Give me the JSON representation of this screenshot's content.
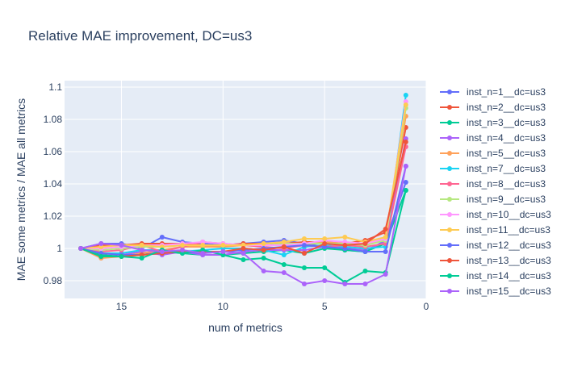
{
  "chart_data": {
    "type": "line",
    "title": "Relative MAE improvement, DC=us3",
    "xlabel": "num of metrics",
    "ylabel": "MAE some metrics / MAE all metrics",
    "xlim": [
      17.8,
      0
    ],
    "ylim": [
      0.969,
      1.104
    ],
    "xticks": [
      15,
      10,
      5,
      0
    ],
    "yticks": [
      0.98,
      1,
      1.02,
      1.04,
      1.06,
      1.08,
      1.1
    ],
    "ytick_labels": [
      "0.98",
      "1",
      "1.02",
      "1.04",
      "1.06",
      "1.08",
      "1.1"
    ],
    "grid": true,
    "legend_position": "right",
    "x": [
      17,
      16,
      15,
      14,
      13,
      12,
      11,
      10,
      9,
      8,
      7,
      6,
      5,
      4,
      3,
      2,
      1
    ],
    "series": [
      {
        "name": "inst_n=1__dc=us3",
        "color": "#636efa",
        "values": [
          1.0,
          1.003,
          1.003,
          1.0,
          1.007,
          1.004,
          1.003,
          1.002,
          1.003,
          1.004,
          1.005,
          1.003,
          1.001,
          0.999,
          0.998,
          1.005,
          1.041
        ]
      },
      {
        "name": "inst_n=2__dc=us3",
        "color": "#ef553b",
        "values": [
          1.0,
          1.002,
          1.002,
          1.003,
          1.003,
          1.003,
          1.002,
          1.002,
          1.003,
          1.003,
          1.003,
          1.004,
          1.004,
          1.003,
          1.005,
          1.01,
          1.075
        ]
      },
      {
        "name": "inst_n=3__dc=us3",
        "color": "#00cc96",
        "values": [
          1.0,
          0.996,
          0.995,
          0.996,
          0.998,
          0.997,
          0.996,
          0.996,
          0.997,
          0.998,
          0.999,
          0.997,
          1.0,
          0.999,
          0.998,
          1.003,
          1.036
        ]
      },
      {
        "name": "inst_n=4__dc=us3",
        "color": "#ab63fa",
        "values": [
          1.0,
          0.997,
          0.996,
          0.998,
          0.996,
          0.998,
          0.996,
          0.996,
          0.998,
          0.999,
          0.999,
          0.999,
          1.001,
          1.0,
          0.999,
          1.004,
          1.068
        ]
      },
      {
        "name": "inst_n=5__dc=us3",
        "color": "#ffa15a",
        "values": [
          1.0,
          0.994,
          0.995,
          0.997,
          0.999,
          1.001,
          1.001,
          1.001,
          1.002,
          1.002,
          1.002,
          1.003,
          1.004,
          1.003,
          1.002,
          1.006,
          1.082
        ]
      },
      {
        "name": "inst_n=7__dc=us3",
        "color": "#19d3f3",
        "values": [
          1.0,
          0.997,
          0.997,
          0.999,
          0.999,
          0.998,
          0.999,
          1.0,
          1.0,
          0.999,
          0.996,
          1.001,
          1.002,
          1.001,
          1.0,
          1.001,
          1.095
        ]
      },
      {
        "name": "inst_n=8__dc=us3",
        "color": "#ff6692",
        "values": [
          1.0,
          0.998,
          0.999,
          1.002,
          0.998,
          1.001,
          1.004,
          1.003,
          1.002,
          1.001,
          1.0,
          1.002,
          1.001,
          1.002,
          1.001,
          1.003,
          1.063
        ]
      },
      {
        "name": "inst_n=9__dc=us3",
        "color": "#b6e880",
        "values": [
          1.0,
          0.999,
          1.0,
          1.001,
          1.001,
          1.002,
          1.002,
          1.002,
          1.002,
          1.002,
          1.003,
          1.003,
          1.003,
          1.003,
          1.002,
          1.005,
          1.087
        ]
      },
      {
        "name": "inst_n=10__dc=us3",
        "color": "#ff97ff",
        "values": [
          1.0,
          1.0,
          1.001,
          1.002,
          1.002,
          1.003,
          1.004,
          1.003,
          1.002,
          1.002,
          1.002,
          1.003,
          1.005,
          1.004,
          1.003,
          1.006,
          1.091
        ]
      },
      {
        "name": "inst_n=11__dc=us3",
        "color": "#fecb52",
        "values": [
          1.0,
          1.001,
          1.002,
          1.002,
          1.001,
          1.002,
          1.002,
          1.002,
          1.002,
          1.003,
          1.004,
          1.006,
          1.006,
          1.007,
          1.004,
          1.007,
          1.089
        ]
      },
      {
        "name": "inst_n=12__dc=us3",
        "color": "#636efa",
        "values": [
          1.0,
          0.997,
          0.996,
          0.996,
          0.997,
          0.998,
          0.997,
          0.998,
          0.999,
          1.0,
          1.001,
          1.002,
          1.001,
          1.0,
          0.998,
          0.998,
          1.051
        ]
      },
      {
        "name": "inst_n=13__dc=us3",
        "color": "#ef553b",
        "values": [
          1.0,
          0.995,
          0.995,
          0.996,
          0.997,
          0.998,
          0.998,
          0.998,
          1.0,
          0.999,
          1.001,
          0.997,
          1.003,
          1.002,
          1.003,
          1.012,
          1.066
        ]
      },
      {
        "name": "inst_n=14__dc=us3",
        "color": "#00cc96",
        "values": [
          1.0,
          0.995,
          0.995,
          0.994,
          0.999,
          0.997,
          0.999,
          0.996,
          0.993,
          0.994,
          0.99,
          0.988,
          0.988,
          0.979,
          0.986,
          0.985,
          1.036
        ]
      },
      {
        "name": "inst_n=15__dc=us3",
        "color": "#ab63fa",
        "values": [
          1.0,
          1.003,
          1.002,
          0.999,
          0.998,
          0.999,
          0.997,
          0.998,
          0.997,
          0.986,
          0.985,
          0.978,
          0.98,
          0.978,
          0.978,
          0.984,
          1.051
        ]
      }
    ]
  }
}
